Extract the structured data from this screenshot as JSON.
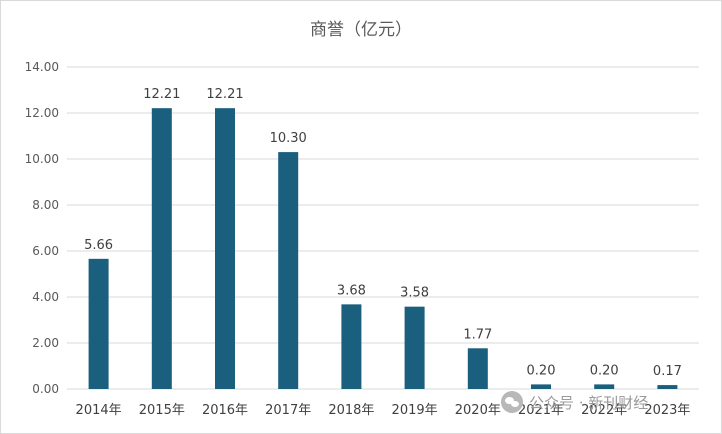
{
  "chart_data": {
    "type": "bar",
    "title": "商誉（亿元）",
    "categories": [
      "2014年",
      "2015年",
      "2016年",
      "2017年",
      "2018年",
      "2019年",
      "2020年",
      "2021年",
      "2022年",
      "2023年"
    ],
    "values": [
      5.66,
      12.21,
      12.21,
      10.3,
      3.68,
      3.58,
      1.77,
      0.2,
      0.2,
      0.17
    ],
    "data_labels": [
      "5.66",
      "12.21",
      "12.21",
      "10.30",
      "3.68",
      "3.58",
      "1.77",
      "0.20",
      "0.20",
      "0.17"
    ],
    "y_ticks": [
      "0.00",
      "2.00",
      "4.00",
      "6.00",
      "8.00",
      "10.00",
      "12.00",
      "14.00"
    ],
    "ylim": [
      0,
      14
    ],
    "xlabel": "",
    "ylabel": "",
    "grid": true,
    "legend": "none",
    "bar_color": "#1a5f7e"
  },
  "watermark": {
    "icon": "wechat-icon",
    "text": "公众号 · 新刊财经"
  }
}
